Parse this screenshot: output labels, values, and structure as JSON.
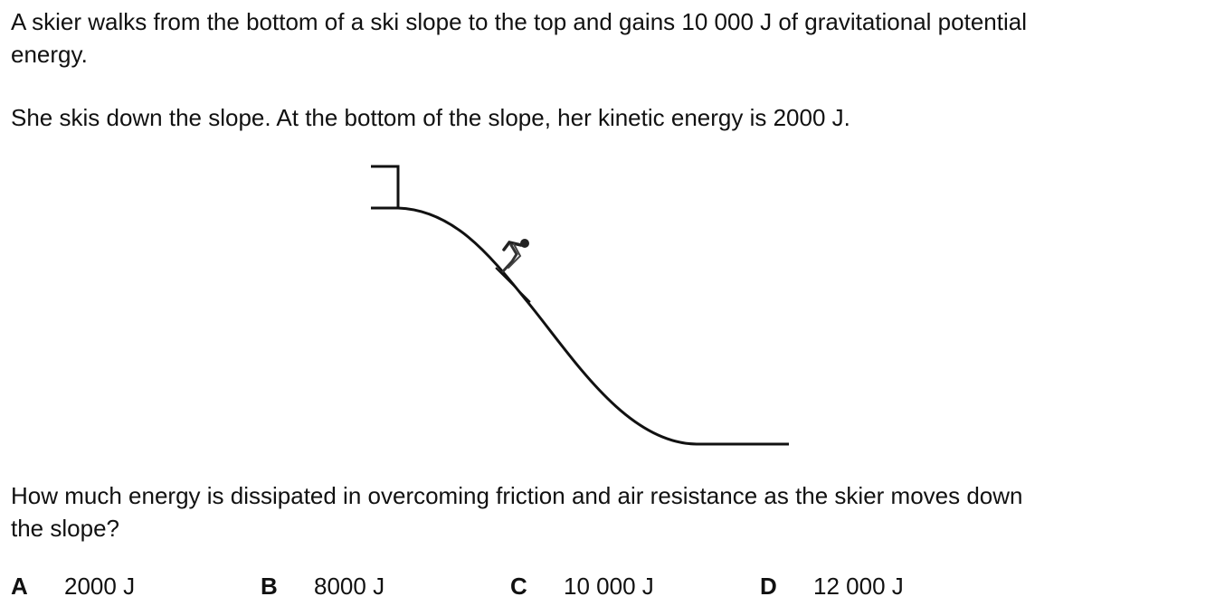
{
  "question": {
    "intro_line1": "A skier walks from the bottom of a ski slope to the top and gains 10 000 J of gravitational potential",
    "intro_line2": "energy.",
    "statement": "She skis down the slope. At the bottom of the slope, her kinetic energy is 2000 J.",
    "prompt_line1": "How much energy is dissipated in overcoming friction and air resistance as the skier moves down",
    "prompt_line2": "the slope?"
  },
  "options": [
    {
      "letter": "A",
      "value": "2000 J"
    },
    {
      "letter": "B",
      "value": "8000 J"
    },
    {
      "letter": "C",
      "value": "10 000 J"
    },
    {
      "letter": "D",
      "value": "12 000 J"
    }
  ],
  "figure": {
    "icon": "skier-icon",
    "line_color": "#111111"
  }
}
